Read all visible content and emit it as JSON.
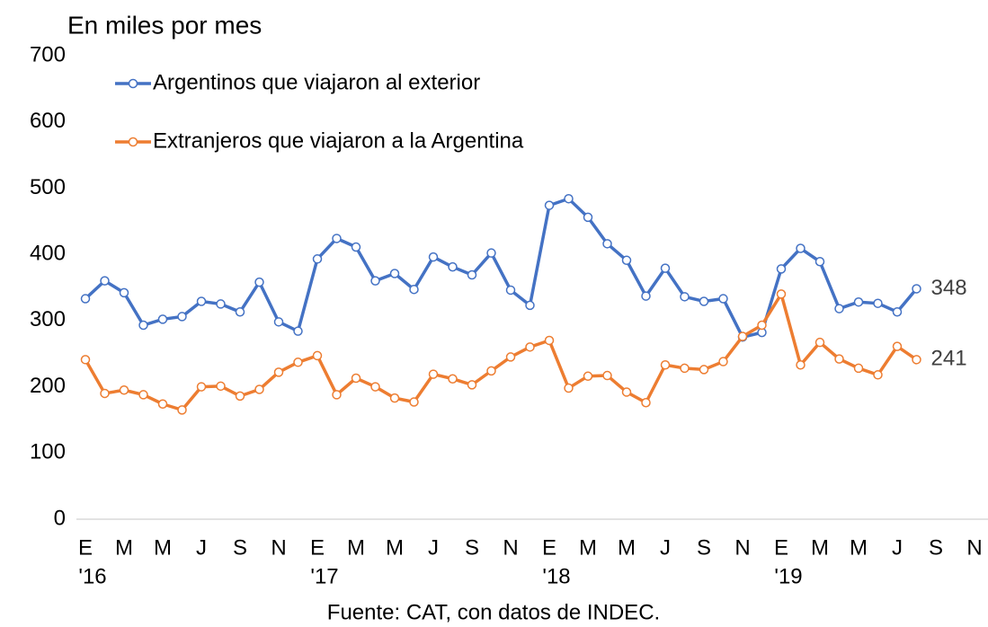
{
  "chart_data": {
    "type": "line",
    "title": "En miles por mes",
    "source": "Fuente: CAT, con datos de INDEC.",
    "categories": [
      "E",
      null,
      "M",
      null,
      "M",
      null,
      "J",
      null,
      "S",
      null,
      "N",
      null,
      "E",
      null,
      "M",
      null,
      "M",
      null,
      "J",
      null,
      "S",
      null,
      "N",
      null,
      "E",
      null,
      "M",
      null,
      "M",
      null,
      "J",
      null,
      "S",
      null,
      "N",
      null,
      "E",
      null,
      "M",
      null,
      "M",
      null,
      "J",
      null,
      "S",
      null,
      "N"
    ],
    "category_years": [
      "'16",
      null,
      null,
      null,
      null,
      null,
      null,
      null,
      null,
      null,
      null,
      null,
      "'17",
      null,
      null,
      null,
      null,
      null,
      null,
      null,
      null,
      null,
      null,
      null,
      "'18",
      null,
      null,
      null,
      null,
      null,
      null,
      null,
      null,
      null,
      null,
      null,
      "'19",
      null,
      null,
      null,
      null,
      null,
      null,
      null,
      null,
      null,
      null
    ],
    "series": [
      {
        "name": "Argentinos que viajaron al exterior",
        "color": "#4472c4",
        "values": [
          333,
          360,
          342,
          293,
          302,
          306,
          329,
          325,
          313,
          358,
          298,
          284,
          393,
          424,
          411,
          360,
          371,
          347,
          396,
          381,
          369,
          402,
          346,
          323,
          474,
          484,
          456,
          416,
          391,
          337,
          379,
          336,
          329,
          333,
          275,
          282,
          378,
          409,
          389,
          318,
          328,
          326,
          313,
          348,
          null,
          null,
          null
        ]
      },
      {
        "name": "Extranjeros que viajaron a la Argentina",
        "color": "#ed7d31",
        "values": [
          241,
          190,
          195,
          188,
          174,
          165,
          200,
          201,
          186,
          196,
          222,
          237,
          247,
          188,
          213,
          200,
          183,
          177,
          219,
          212,
          203,
          224,
          245,
          260,
          270,
          198,
          216,
          217,
          192,
          176,
          233,
          228,
          226,
          238,
          276,
          293,
          340,
          233,
          267,
          242,
          228,
          218,
          261,
          241,
          null,
          null,
          null
        ]
      }
    ],
    "ylim": [
      0,
      700
    ],
    "yticks": [
      0,
      100,
      200,
      300,
      400,
      500,
      600,
      700
    ],
    "grid": false
  }
}
